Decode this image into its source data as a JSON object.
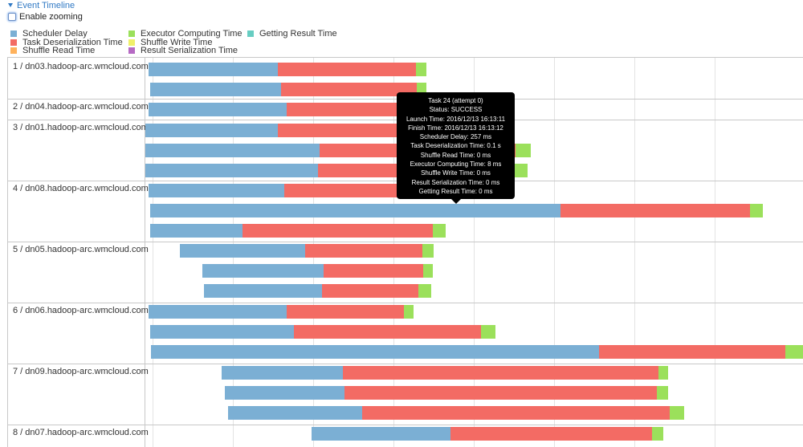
{
  "header": {
    "title": "Event Timeline",
    "zoom_label": "Enable zooming"
  },
  "legend": [
    {
      "label": "Scheduler Delay",
      "color": "#7bafd4"
    },
    {
      "label": "Task Deserialization Time",
      "color": "#f36b64"
    },
    {
      "label": "Shuffle Read Time",
      "color": "#ffb25c"
    },
    {
      "label": "Executor Computing Time",
      "color": "#9be05b"
    },
    {
      "label": "Shuffle Write Time",
      "color": "#f0f06a"
    },
    {
      "label": "Result Serialization Time",
      "color": "#b66ac4"
    },
    {
      "label": "Getting Result Time",
      "color": "#67cdc2"
    }
  ],
  "executors": [
    {
      "label": "1 / dn03.hadoop-arc.wmcloud.com",
      "tasks": 2
    },
    {
      "label": "2 / dn04.hadoop-arc.wmcloud.com",
      "tasks": 1
    },
    {
      "label": "3 / dn01.hadoop-arc.wmcloud.com",
      "tasks": 3
    },
    {
      "label": "4 / dn08.hadoop-arc.wmcloud.com",
      "tasks": 3
    },
    {
      "label": "5 / dn05.hadoop-arc.wmcloud.com",
      "tasks": 3
    },
    {
      "label": "6 / dn06.hadoop-arc.wmcloud.com",
      "tasks": 3
    },
    {
      "label": "7 / dn09.hadoop-arc.wmcloud.com",
      "tasks": 3
    },
    {
      "label": "8 / dn07.hadoop-arc.wmcloud.com",
      "tasks": 1
    }
  ],
  "tooltip": {
    "title": "Task 24 (attempt 0)",
    "status": "Status: SUCCESS",
    "launch": "Launch Time: 2016/12/13 16:13:11",
    "finish": "Finish Time: 2016/12/13 16:13:12",
    "scheduler_delay": "Scheduler Delay: 257 ms",
    "deserialization": "Task Deserialization Time: 0.1 s",
    "shuffle_read": "Shuffle Read Time: 0 ms",
    "executor_computing": "Executor Computing Time: 8 ms",
    "shuffle_write": "Shuffle Write Time: 0 ms",
    "result_serialization": "Result Serialization Time: 0 ms",
    "getting_result": "Getting Result Time: 0 ms"
  }
}
